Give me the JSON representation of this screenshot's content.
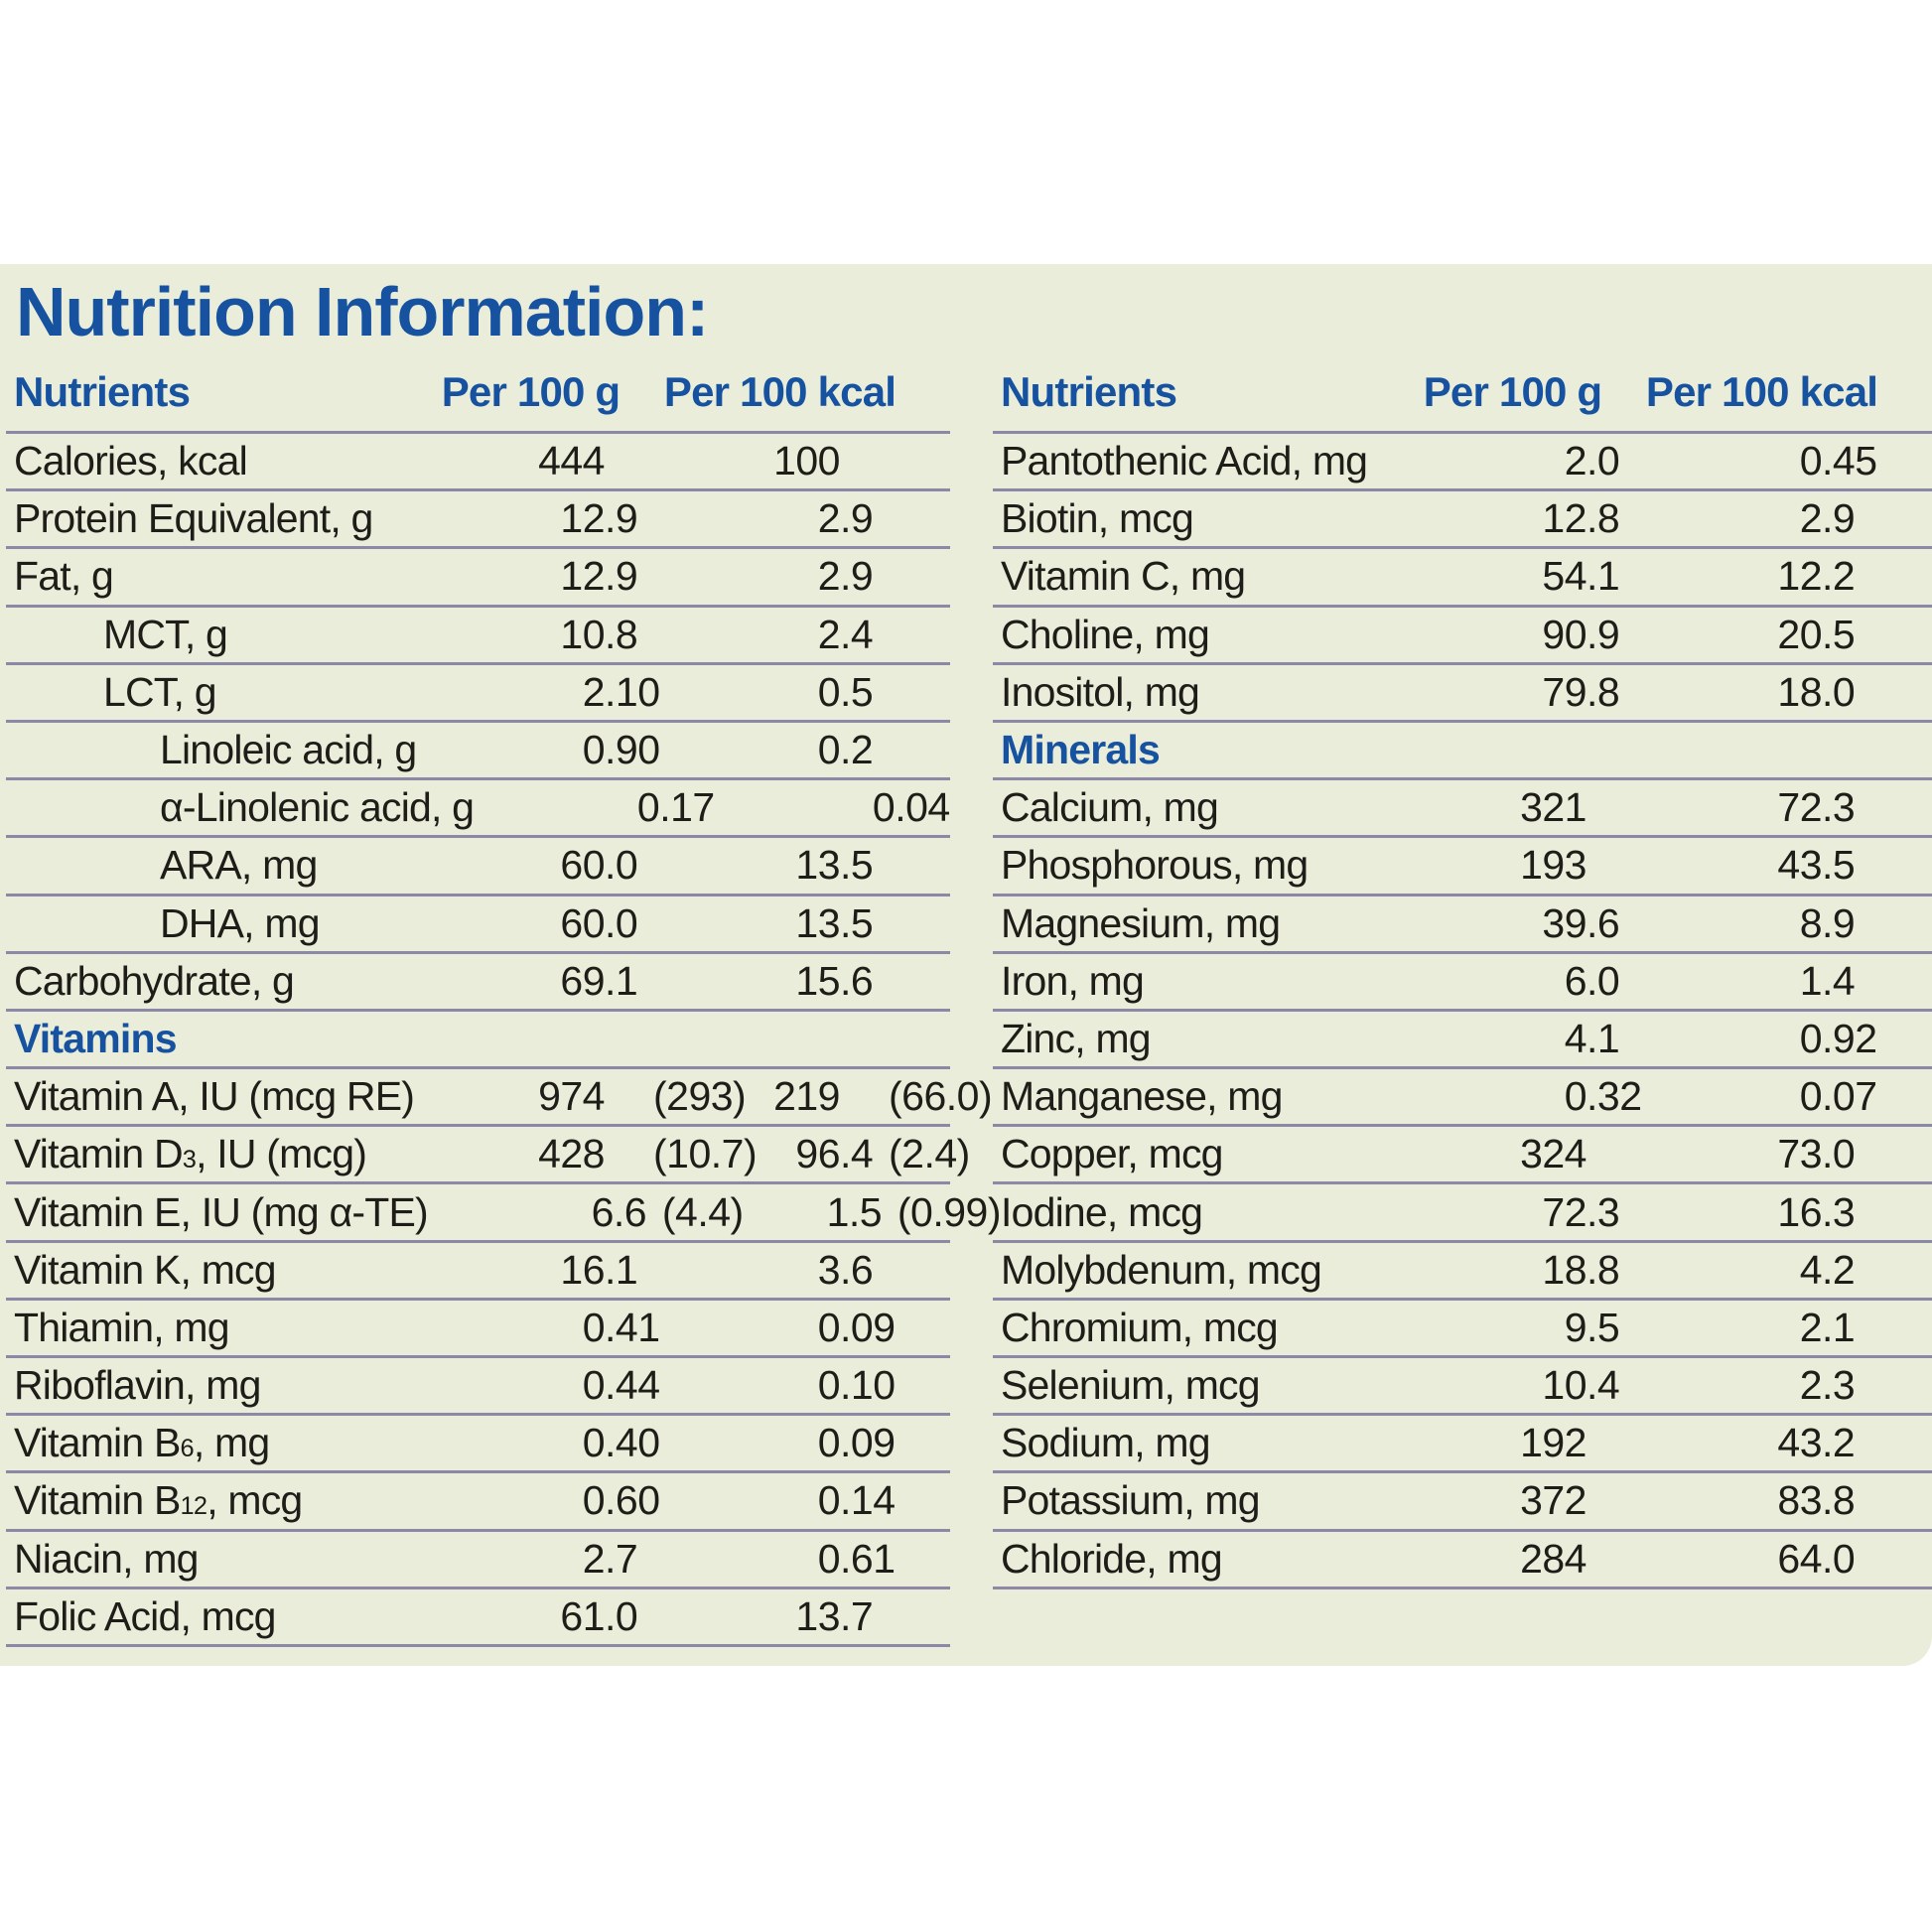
{
  "title": "Nutrition Information:",
  "colors": {
    "accent_blue": "#16529f",
    "panel_background": "#e9edda",
    "divider": "#8c89a7",
    "text": "#1e1d18"
  },
  "tables": [
    {
      "id": "left",
      "headers": {
        "nutrient": "Nutrients",
        "per_100_g": "Per 100 g",
        "per_100_kcal": "Per 100 kcal"
      },
      "rows": [
        {
          "label": "Calories, kcal",
          "indent": 0,
          "per_100_g": "444",
          "per_100_kcal": "100"
        },
        {
          "label": "Protein Equivalent, g",
          "indent": 0,
          "per_100_g": "12.9",
          "per_100_kcal": "2.9"
        },
        {
          "label": "Fat, g",
          "indent": 0,
          "per_100_g": "12.9",
          "per_100_kcal": "2.9"
        },
        {
          "label": "MCT, g",
          "indent": 1,
          "per_100_g": "10.8",
          "per_100_kcal": "2.4"
        },
        {
          "label": "LCT, g",
          "indent": 1,
          "per_100_g": "2.10",
          "per_100_kcal": "0.5"
        },
        {
          "label": "Linoleic acid, g",
          "indent": 2,
          "per_100_g": "0.90",
          "per_100_kcal": "0.2"
        },
        {
          "label": "α-Linolenic acid, g",
          "indent": 2,
          "per_100_g": "0.17",
          "per_100_kcal": "0.04"
        },
        {
          "label": "ARA, mg",
          "indent": 2,
          "per_100_g": "60.0",
          "per_100_kcal": "13.5"
        },
        {
          "label": "DHA, mg",
          "indent": 2,
          "per_100_g": "60.0",
          "per_100_kcal": "13.5"
        },
        {
          "label": "Carbohydrate, g",
          "indent": 0,
          "per_100_g": "69.1",
          "per_100_kcal": "15.6"
        },
        {
          "section": "Vitamins"
        },
        {
          "label": "Vitamin A, IU (mcg RE)",
          "indent": 0,
          "per_100_g": "974 (293)",
          "per_100_kcal": "219 (66.0)"
        },
        {
          "label": "Vitamin D~3~, IU (mcg)",
          "indent": 0,
          "per_100_g": "428 (10.7)",
          "per_100_kcal": "96.4 (2.4)"
        },
        {
          "label": "Vitamin E, IU (mg α-TE)",
          "indent": 0,
          "per_100_g": "6.6 (4.4)",
          "per_100_kcal": "1.5 (0.99)"
        },
        {
          "label": "Vitamin K, mcg",
          "indent": 0,
          "per_100_g": "16.1",
          "per_100_kcal": "3.6"
        },
        {
          "label": "Thiamin, mg",
          "indent": 0,
          "per_100_g": "0.41",
          "per_100_kcal": "0.09"
        },
        {
          "label": "Riboflavin, mg",
          "indent": 0,
          "per_100_g": "0.44",
          "per_100_kcal": "0.10"
        },
        {
          "label": "Vitamin B~6~, mg",
          "indent": 0,
          "per_100_g": "0.40",
          "per_100_kcal": "0.09"
        },
        {
          "label": "Vitamin B~12~, mcg",
          "indent": 0,
          "per_100_g": "0.60",
          "per_100_kcal": "0.14"
        },
        {
          "label": "Niacin, mg",
          "indent": 0,
          "per_100_g": "2.7",
          "per_100_kcal": "0.61"
        },
        {
          "label": "Folic Acid, mcg",
          "indent": 0,
          "per_100_g": "61.0",
          "per_100_kcal": "13.7"
        }
      ]
    },
    {
      "id": "right",
      "headers": {
        "nutrient": "Nutrients",
        "per_100_g": "Per 100 g",
        "per_100_kcal": "Per 100 kcal"
      },
      "rows": [
        {
          "label": "Pantothenic Acid, mg",
          "indent": 0,
          "per_100_g": "2.0",
          "per_100_kcal": "0.45"
        },
        {
          "label": "Biotin, mcg",
          "indent": 0,
          "per_100_g": "12.8",
          "per_100_kcal": "2.9"
        },
        {
          "label": "Vitamin C, mg",
          "indent": 0,
          "per_100_g": "54.1",
          "per_100_kcal": "12.2"
        },
        {
          "label": "Choline, mg",
          "indent": 0,
          "per_100_g": "90.9",
          "per_100_kcal": "20.5"
        },
        {
          "label": "Inositol, mg",
          "indent": 0,
          "per_100_g": "79.8",
          "per_100_kcal": "18.0"
        },
        {
          "section": "Minerals"
        },
        {
          "label": "Calcium, mg",
          "indent": 0,
          "per_100_g": "321",
          "per_100_kcal": "72.3"
        },
        {
          "label": "Phosphorous, mg",
          "indent": 0,
          "per_100_g": "193",
          "per_100_kcal": "43.5"
        },
        {
          "label": "Magnesium, mg",
          "indent": 0,
          "per_100_g": "39.6",
          "per_100_kcal": "8.9"
        },
        {
          "label": "Iron, mg",
          "indent": 0,
          "per_100_g": "6.0",
          "per_100_kcal": "1.4"
        },
        {
          "label": "Zinc, mg",
          "indent": 0,
          "per_100_g": "4.1",
          "per_100_kcal": "0.92"
        },
        {
          "label": "Manganese, mg",
          "indent": 0,
          "per_100_g": "0.32",
          "per_100_kcal": "0.07"
        },
        {
          "label": "Copper, mcg",
          "indent": 0,
          "per_100_g": "324",
          "per_100_kcal": "73.0"
        },
        {
          "label": "Iodine, mcg",
          "indent": 0,
          "per_100_g": "72.3",
          "per_100_kcal": "16.3"
        },
        {
          "label": "Molybdenum, mcg",
          "indent": 0,
          "per_100_g": "18.8",
          "per_100_kcal": "4.2"
        },
        {
          "label": "Chromium, mcg",
          "indent": 0,
          "per_100_g": "9.5",
          "per_100_kcal": "2.1"
        },
        {
          "label": "Selenium, mcg",
          "indent": 0,
          "per_100_g": "10.4",
          "per_100_kcal": "2.3"
        },
        {
          "label": "Sodium, mg",
          "indent": 0,
          "per_100_g": "192",
          "per_100_kcal": "43.2"
        },
        {
          "label": "Potassium, mg",
          "indent": 0,
          "per_100_g": "372",
          "per_100_kcal": "83.8"
        },
        {
          "label": "Chloride, mg",
          "indent": 0,
          "per_100_g": "284",
          "per_100_kcal": "64.0"
        }
      ]
    }
  ]
}
